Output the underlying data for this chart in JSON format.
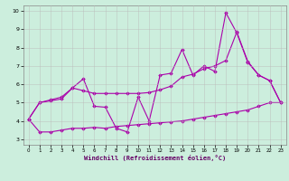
{
  "xlabel": "Windchill (Refroidissement éolien,°C)",
  "bg_color": "#cceedd",
  "line_color": "#aa00aa",
  "grid_color": "#bbbbbb",
  "xlim": [
    -0.5,
    23.5
  ],
  "ylim": [
    2.7,
    10.3
  ],
  "xticks": [
    0,
    1,
    2,
    3,
    4,
    5,
    6,
    7,
    8,
    9,
    10,
    11,
    12,
    13,
    14,
    15,
    16,
    17,
    18,
    19,
    20,
    21,
    22,
    23
  ],
  "yticks": [
    3,
    4,
    5,
    6,
    7,
    8,
    9,
    10
  ],
  "line1_x": [
    0,
    1,
    2,
    3,
    4,
    5,
    6,
    7,
    8,
    9,
    10,
    11,
    12,
    13,
    14,
    15,
    16,
    17,
    18,
    19,
    20,
    21,
    22,
    23
  ],
  "line1_y": [
    4.1,
    3.4,
    3.4,
    3.5,
    3.6,
    3.6,
    3.65,
    3.6,
    3.7,
    3.75,
    3.8,
    3.85,
    3.9,
    3.95,
    4.0,
    4.1,
    4.2,
    4.3,
    4.4,
    4.5,
    4.6,
    4.8,
    5.0,
    5.0
  ],
  "line2_x": [
    0,
    1,
    2,
    3,
    4,
    5,
    6,
    7,
    8,
    9,
    10,
    11,
    12,
    13,
    14,
    15,
    16,
    17,
    18,
    19,
    20,
    21,
    22,
    23
  ],
  "line2_y": [
    4.1,
    5.0,
    5.1,
    5.2,
    5.8,
    6.3,
    4.8,
    4.75,
    3.6,
    3.4,
    5.3,
    4.0,
    6.5,
    6.6,
    7.9,
    6.5,
    7.0,
    6.7,
    9.9,
    8.8,
    7.2,
    6.5,
    6.2,
    5.0
  ],
  "line3_x": [
    0,
    1,
    2,
    3,
    4,
    5,
    6,
    7,
    8,
    9,
    10,
    11,
    12,
    13,
    14,
    15,
    16,
    17,
    18,
    19,
    20,
    21,
    22,
    23
  ],
  "line3_y": [
    4.1,
    5.0,
    5.15,
    5.3,
    5.8,
    5.65,
    5.5,
    5.5,
    5.5,
    5.5,
    5.5,
    5.55,
    5.7,
    5.9,
    6.4,
    6.55,
    6.85,
    7.0,
    7.3,
    8.85,
    7.25,
    6.5,
    6.2,
    5.0
  ]
}
